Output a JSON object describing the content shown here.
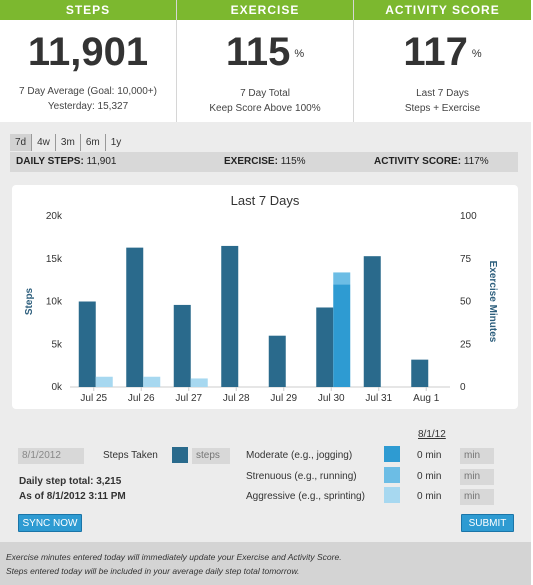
{
  "stats": [
    {
      "header": "STEPS",
      "value": "11,901",
      "unit": "",
      "line1": "7 Day Average (Goal: 10,000+)",
      "line2": "Yesterday: 15,327"
    },
    {
      "header": "EXERCISE",
      "value": "115",
      "unit": "%",
      "line1": "7 Day Total",
      "line2": "Keep Score Above 100%"
    },
    {
      "header": "ACTIVITY SCORE",
      "value": "117",
      "unit": "%",
      "line1": "Last 7 Days",
      "line2": "Steps + Exercise"
    }
  ],
  "ranges": [
    "7d",
    "4w",
    "3m",
    "6m",
    "1y"
  ],
  "active_range": "7d",
  "summary": {
    "steps_label": "DAILY STEPS:",
    "steps_value": "11,901",
    "exercise_label": "EXERCISE:",
    "exercise_value": "115%",
    "activity_label": "ACTIVITY SCORE:",
    "activity_value": "117%"
  },
  "chart_data": {
    "type": "bar",
    "title": "Last 7 Days",
    "categories": [
      "Jul 25",
      "Jul 26",
      "Jul 27",
      "Jul 28",
      "Jul 29",
      "Jul 30",
      "Jul 31",
      "Aug 1"
    ],
    "ylabel": "Steps",
    "y2label": "Exercise Minutes",
    "ylim": [
      0,
      20000
    ],
    "y2lim": [
      0,
      100
    ],
    "yticks": [
      "0k",
      "5k",
      "10k",
      "15k",
      "20k"
    ],
    "y2ticks": [
      "0",
      "25",
      "50",
      "75",
      "100"
    ],
    "series": [
      {
        "name": "Steps Taken",
        "axis": "left",
        "color": "#2a6a8c",
        "values": [
          10000,
          16300,
          9600,
          16500,
          6000,
          9300,
          15300,
          3200
        ]
      },
      {
        "name": "Moderate (e.g., jogging)",
        "axis": "right",
        "color": "#2e9bd2",
        "values": [
          0,
          0,
          0,
          0,
          0,
          60,
          0,
          0
        ]
      },
      {
        "name": "Strenuous (e.g., running)",
        "axis": "right",
        "color": "#6cbde5",
        "values": [
          0,
          0,
          0,
          0,
          0,
          7,
          0,
          0
        ]
      },
      {
        "name": "Aggressive (e.g., sprinting)",
        "axis": "right",
        "color": "#a7d8f0",
        "values": [
          6,
          6,
          5,
          0,
          0,
          0,
          0,
          0
        ]
      }
    ],
    "grid": false,
    "legend": "none"
  },
  "form": {
    "date_value": "8/1/2012",
    "steps_taken_label": "Steps Taken",
    "steps_placeholder": "steps",
    "daily_total": "Daily step total: 3,215",
    "as_of": "As of 8/1/2012 3:11 PM",
    "sync_label": "SYNC NOW",
    "exercise_date": "8/1/12",
    "moderate_label": "Moderate (e.g., jogging)",
    "strenuous_label": "Strenuous (e.g., running)",
    "aggressive_label": "Aggressive (e.g., sprinting)",
    "moderate_value": "0 min",
    "strenuous_value": "0 min",
    "aggressive_value": "0 min",
    "min_placeholder": "min",
    "submit_label": "SUBMIT"
  },
  "notice": {
    "line1": "Exercise minutes entered today will immediately update your Exercise and Activity Score.",
    "line2": "Steps entered today will be included in your average daily step total tomorrow."
  },
  "colors": {
    "header_green": "#7cb82f",
    "steps_bar": "#2a6a8c",
    "button_blue": "#2e9bd2"
  }
}
